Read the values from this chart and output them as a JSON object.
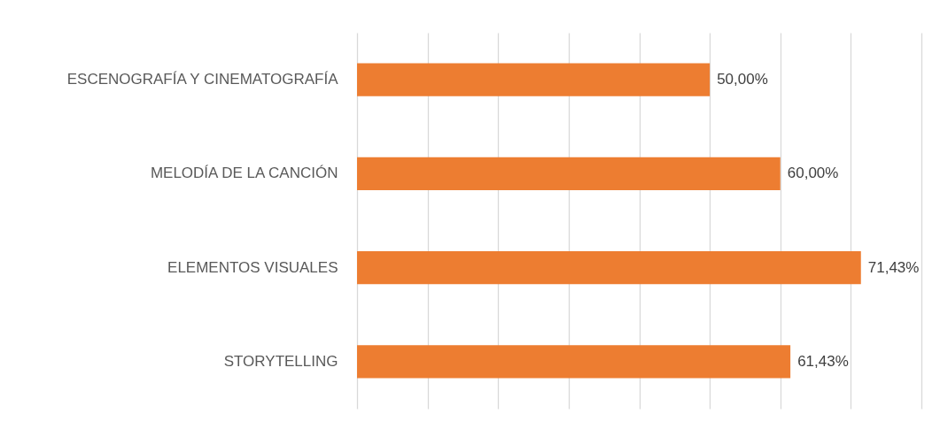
{
  "chart_data": {
    "type": "bar",
    "orientation": "horizontal",
    "categories": [
      "ESCENOGRAFÍA Y CINEMATOGRAFÍA",
      "MELODÍA DE LA CANCIÓN",
      "ELEMENTOS VISUALES",
      "STORYTELLING"
    ],
    "values": [
      50,
      60,
      71.43,
      61.43
    ],
    "value_labels": [
      "50,00%",
      "60,00%",
      "71,43%",
      "61,43%"
    ],
    "color": "#ed7d31",
    "xlim": [
      0,
      80
    ],
    "xticks": [
      {
        "value": 0,
        "label": null
      },
      {
        "value": 10,
        "label": null
      },
      {
        "value": 20,
        "label": null
      },
      {
        "value": 30,
        "label": null
      },
      {
        "value": 40,
        "label": null
      },
      {
        "value": 50,
        "label": null
      },
      {
        "value": 60,
        "label": null
      },
      {
        "value": 70,
        "label": null
      },
      {
        "value": 80,
        "label": null
      }
    ],
    "grid": "x",
    "tick_labels": "y"
  }
}
